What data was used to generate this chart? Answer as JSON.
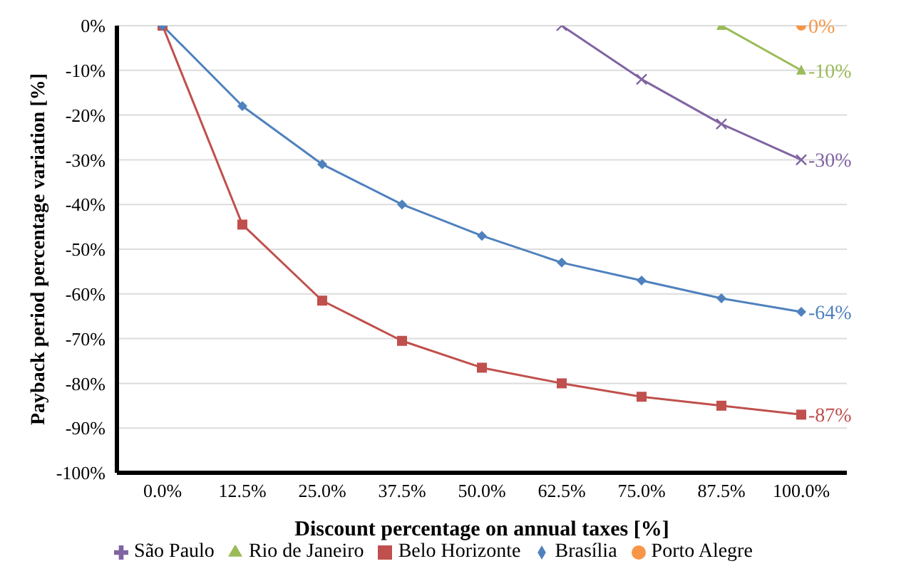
{
  "chart_data": {
    "type": "line",
    "xlabel": "Discount percentage on annual taxes [%]",
    "ylabel": "Payback period percentage variation [%]",
    "categories": [
      "0.0%",
      "12.5%",
      "25.0%",
      "37.5%",
      "50.0%",
      "62.5%",
      "75.0%",
      "87.5%",
      "100.0%"
    ],
    "ylim": [
      -100,
      0
    ],
    "yticks": [
      {
        "value": -100,
        "label": "-100%"
      },
      {
        "value": -90,
        "label": "-90%"
      },
      {
        "value": -80,
        "label": "-80%"
      },
      {
        "value": -70,
        "label": "-70%"
      },
      {
        "value": -60,
        "label": "-60%"
      },
      {
        "value": -50,
        "label": "-50%"
      },
      {
        "value": -40,
        "label": "-40%"
      },
      {
        "value": -30,
        "label": "-30%"
      },
      {
        "value": -20,
        "label": "-20%"
      },
      {
        "value": -10,
        "label": "-10%"
      },
      {
        "value": 0,
        "label": "0%"
      }
    ],
    "grid": "y",
    "legend": "bottom",
    "series": [
      {
        "name": "São Paulo",
        "color": "#8064a2",
        "marker": "cross",
        "values": [
          null,
          null,
          null,
          null,
          null,
          0,
          -12,
          -22,
          -30
        ],
        "value_labels": [
          null,
          null,
          null,
          null,
          null,
          null,
          null,
          null,
          "-30%"
        ]
      },
      {
        "name": "Rio de Janeiro",
        "color": "#9bbb59",
        "marker": "triangle",
        "values": [
          null,
          null,
          null,
          null,
          null,
          null,
          null,
          0,
          -10
        ],
        "value_labels": [
          null,
          null,
          null,
          null,
          null,
          null,
          null,
          null,
          "-10%"
        ]
      },
      {
        "name": "Belo Horizonte",
        "color": "#c0504d",
        "marker": "square",
        "values": [
          0,
          -44.5,
          -61.5,
          -70.5,
          -76.5,
          -80,
          -83,
          -85,
          -87
        ],
        "value_labels": [
          null,
          null,
          null,
          null,
          null,
          null,
          null,
          null,
          "-87%"
        ]
      },
      {
        "name": "Brasília",
        "color": "#4f81bd",
        "marker": "diamond",
        "values": [
          0,
          -18,
          -31,
          -40,
          -47,
          -53,
          -57,
          -61,
          -64
        ],
        "value_labels": [
          null,
          null,
          null,
          null,
          null,
          null,
          null,
          null,
          "-64%"
        ]
      },
      {
        "name": "Porto Alegre",
        "color": "#f79646",
        "marker": "circle",
        "values": [
          null,
          null,
          null,
          null,
          null,
          null,
          null,
          null,
          0
        ],
        "value_labels": [
          null,
          null,
          null,
          null,
          null,
          null,
          null,
          null,
          "0%"
        ]
      }
    ]
  }
}
